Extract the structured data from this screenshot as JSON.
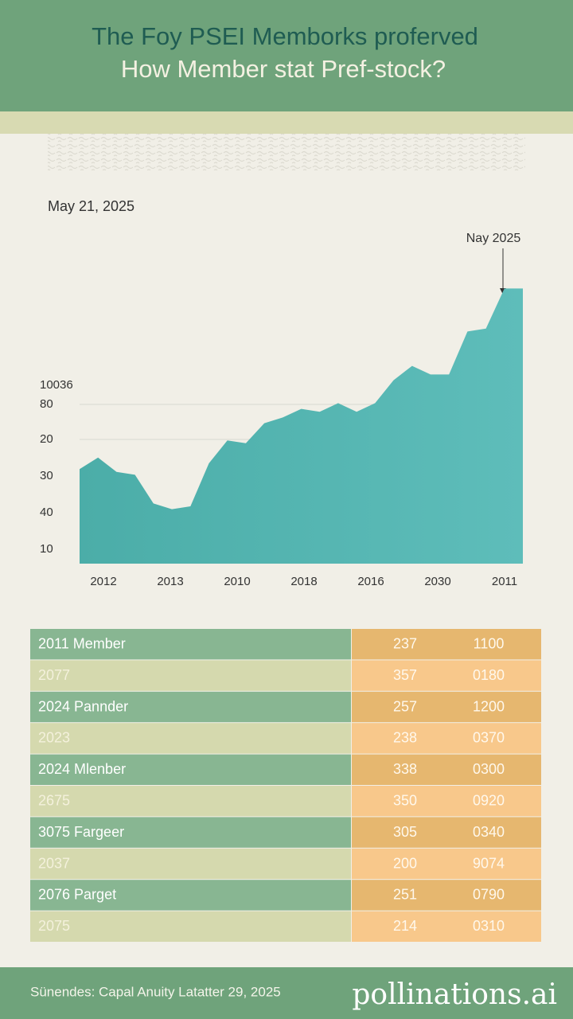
{
  "chart_data": {
    "type": "area",
    "title": [
      "The Foy PSEI Memborks proferved",
      "How Member stat Pref-stock?"
    ],
    "date": "May 21, 2025",
    "annotation": "Nay 2025",
    "color": "#5bb8b4",
    "ylim": [
      0,
      100
    ],
    "y_labels": [
      "10036",
      "80",
      "20",
      "30",
      "40",
      "10"
    ],
    "x_labels": [
      "2012",
      "2013",
      "2010",
      "2018",
      "2016",
      "2030",
      "2011"
    ],
    "values": [
      33,
      37,
      32,
      31,
      21,
      19,
      20,
      35,
      43,
      42,
      49,
      51,
      54,
      53,
      56,
      53,
      56,
      64,
      69,
      66,
      66,
      81,
      82,
      96,
      96
    ]
  },
  "table": {
    "rows": [
      [
        "2011 Member",
        "237",
        "1100"
      ],
      [
        "2077",
        "357",
        "0180"
      ],
      [
        "2024 Pannder",
        "257",
        "1200"
      ],
      [
        "2023",
        "238",
        "0370"
      ],
      [
        "2024 Mlenber",
        "338",
        "0300"
      ],
      [
        "2675",
        "350",
        "0920"
      ],
      [
        "3075 Fargeer",
        "305",
        "0340"
      ],
      [
        "2037",
        "200",
        "9074"
      ],
      [
        "2076 Parget",
        "251",
        "0790"
      ],
      [
        "2075",
        "214",
        "0310"
      ]
    ]
  },
  "footer": {
    "source": "Sünendes: Capal Anuity Latatter 29, 2025",
    "watermark": "pollinations.ai"
  }
}
